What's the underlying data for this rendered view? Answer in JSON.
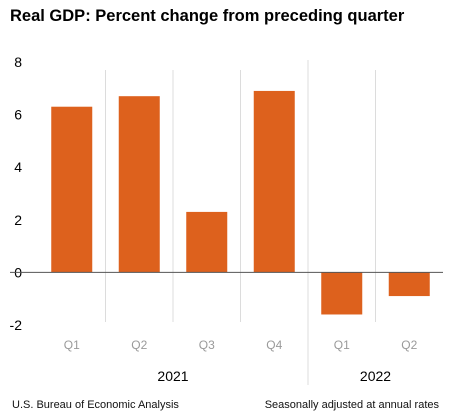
{
  "chart_data": {
    "type": "bar",
    "title": "Real GDP:  Percent change from preceding quarter",
    "categories": [
      "Q1",
      "Q2",
      "Q3",
      "Q4",
      "Q1",
      "Q2"
    ],
    "years": [
      {
        "label": "2021",
        "start": 0,
        "end": 3
      },
      {
        "label": "2022",
        "start": 4,
        "end": 5
      }
    ],
    "values": [
      6.3,
      6.7,
      2.3,
      6.9,
      -1.6,
      -0.9
    ],
    "yticks": [
      "8",
      "6",
      "4",
      "2",
      "0",
      "-2"
    ],
    "ylim": [
      -2,
      8
    ],
    "bar_color": "#dd611d",
    "grid": "vertical separators",
    "xlabel": "",
    "ylabel": ""
  },
  "footer": {
    "source": "U.S. Bureau of Economic Analysis",
    "note": "Seasonally adjusted at annual rates"
  }
}
